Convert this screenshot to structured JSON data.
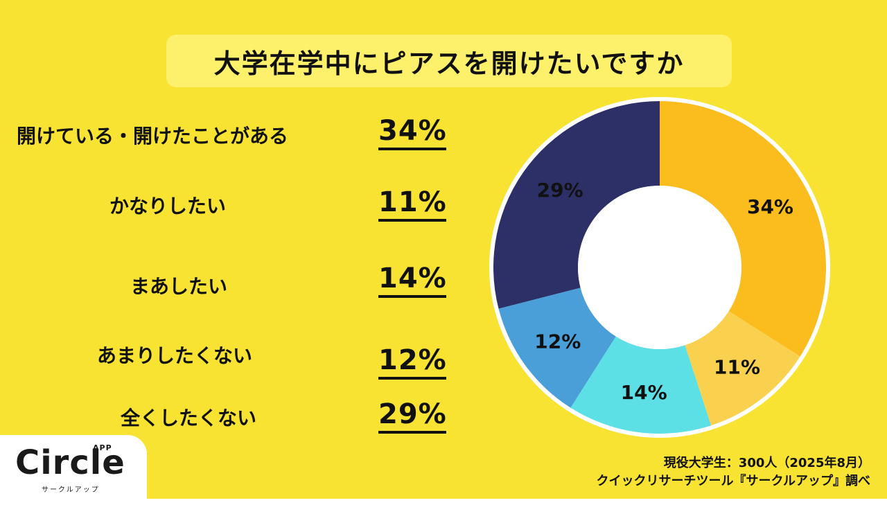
{
  "colors": {
    "background": "#f8e332",
    "title_bg": "#fdf06a",
    "slices": [
      "#fbbd1e",
      "#f9d14e",
      "#5ce0e6",
      "#4a9fd8",
      "#2d3066"
    ],
    "hole": "#ffffff"
  },
  "title": "大学在学中にピアスを開けたいですか",
  "rows": [
    {
      "label": "開けている・開けたことがある",
      "value": "34%"
    },
    {
      "label": "かなりしたい",
      "value": "11%"
    },
    {
      "label": "まあしたい",
      "value": "14%"
    },
    {
      "label": "あまりしたくない",
      "value": "12%"
    },
    {
      "label": "全くしたくない",
      "value": "29%"
    }
  ],
  "chart_data": {
    "type": "pie",
    "style": "donut",
    "categories": [
      "開けている・開けたことがある",
      "かなりしたい",
      "まあしたい",
      "あまりしたくない",
      "全くしたくない"
    ],
    "values": [
      34,
      11,
      14,
      12,
      29
    ],
    "data_labels": [
      "34%",
      "11%",
      "14%",
      "12%",
      "29%"
    ],
    "title": "大学在学中にピアスを開けたいですか",
    "start_angle": "12 o'clock",
    "direction": "clockwise"
  },
  "logo": {
    "name": "Circle",
    "superscript": "APP",
    "subtitle": "サークルアップ"
  },
  "source": {
    "line1": "現役大学生：300人（2025年8月）",
    "line2": "クイックリサーチツール『サークルアップ』調べ"
  }
}
